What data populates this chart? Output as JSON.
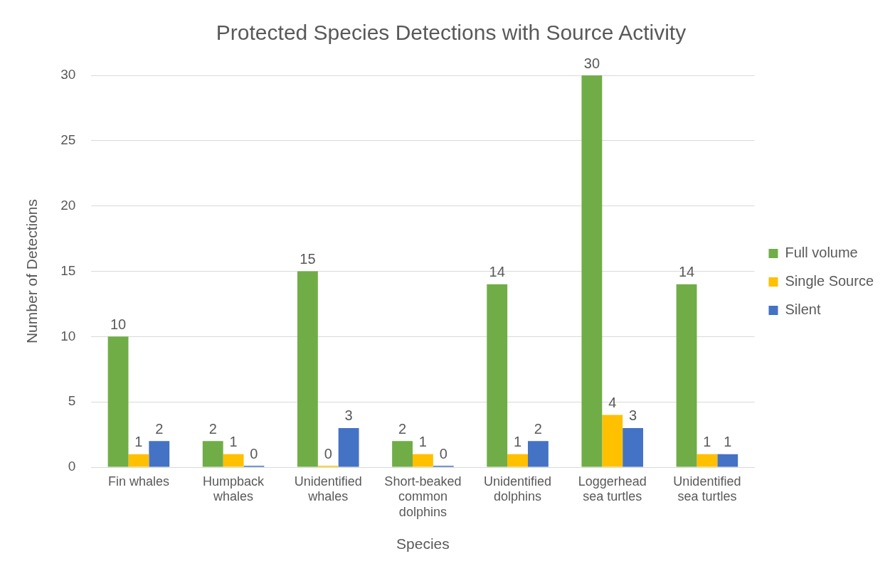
{
  "chart_data": {
    "type": "bar",
    "title": "Protected Species Detections with Source Activity",
    "xlabel": "Species",
    "ylabel": "Number of Detections",
    "categories": [
      "Fin whales",
      "Humpback whales",
      "Unidentified whales",
      "Short-beaked common dolphins",
      "Unidentified dolphins",
      "Loggerhead sea turtles",
      "Unidentified sea turtles"
    ],
    "series": [
      {
        "name": "Full volume",
        "color": "#70ad47",
        "values": [
          10,
          2,
          15,
          2,
          14,
          30,
          14
        ]
      },
      {
        "name": "Single Source",
        "color": "#ffc000",
        "values": [
          1,
          1,
          0,
          1,
          1,
          4,
          1
        ]
      },
      {
        "name": "Silent",
        "color": "#4472c4",
        "values": [
          2,
          0,
          3,
          0,
          2,
          3,
          1
        ]
      }
    ],
    "ylim": [
      0,
      30
    ],
    "yticks": [
      0,
      5,
      10,
      15,
      20,
      25,
      30
    ],
    "grid": "y",
    "legend": "right",
    "data_labels": true
  }
}
